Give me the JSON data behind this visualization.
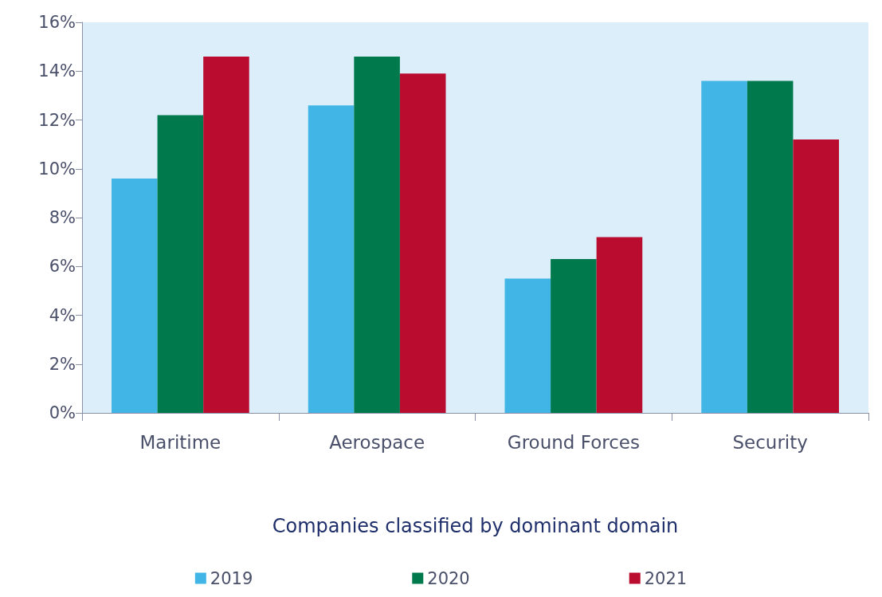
{
  "chart_data": {
    "type": "bar",
    "xlabel": "Companies classified by dominant domain",
    "categories": [
      "Maritime",
      "Aerospace",
      "Ground Forces",
      "Security"
    ],
    "series": [
      {
        "name": "2019",
        "color": "#41b6e6",
        "values": [
          9.6,
          12.6,
          5.5,
          13.6
        ]
      },
      {
        "name": "2020",
        "color": "#007a4d",
        "values": [
          12.2,
          14.6,
          6.3,
          13.6
        ]
      },
      {
        "name": "2021",
        "color": "#ba0c2f",
        "values": [
          14.6,
          13.9,
          7.2,
          11.2
        ]
      }
    ],
    "ylim": [
      0,
      16
    ],
    "yticks": [
      {
        "value": 0,
        "label": "0%"
      },
      {
        "value": 2,
        "label": "2%"
      },
      {
        "value": 4,
        "label": "4%"
      },
      {
        "value": 6,
        "label": "6%"
      },
      {
        "value": 8,
        "label": "8%"
      },
      {
        "value": 10,
        "label": "10%"
      },
      {
        "value": 12,
        "label": "12%"
      },
      {
        "value": 14,
        "label": "14%"
      },
      {
        "value": 16,
        "label": "16%"
      }
    ],
    "grid": false,
    "legend": "bottom"
  }
}
